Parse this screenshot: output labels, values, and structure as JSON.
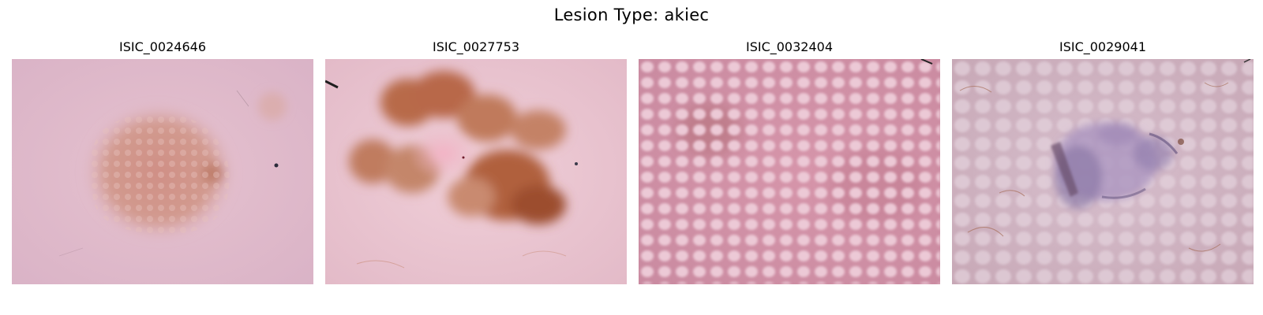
{
  "figure": {
    "title": "Lesion Type: akiec"
  },
  "images": [
    {
      "id": "ISIC_0024646"
    },
    {
      "id": "ISIC_0027753"
    },
    {
      "id": "ISIC_0032404"
    },
    {
      "id": "ISIC_0029041"
    }
  ]
}
